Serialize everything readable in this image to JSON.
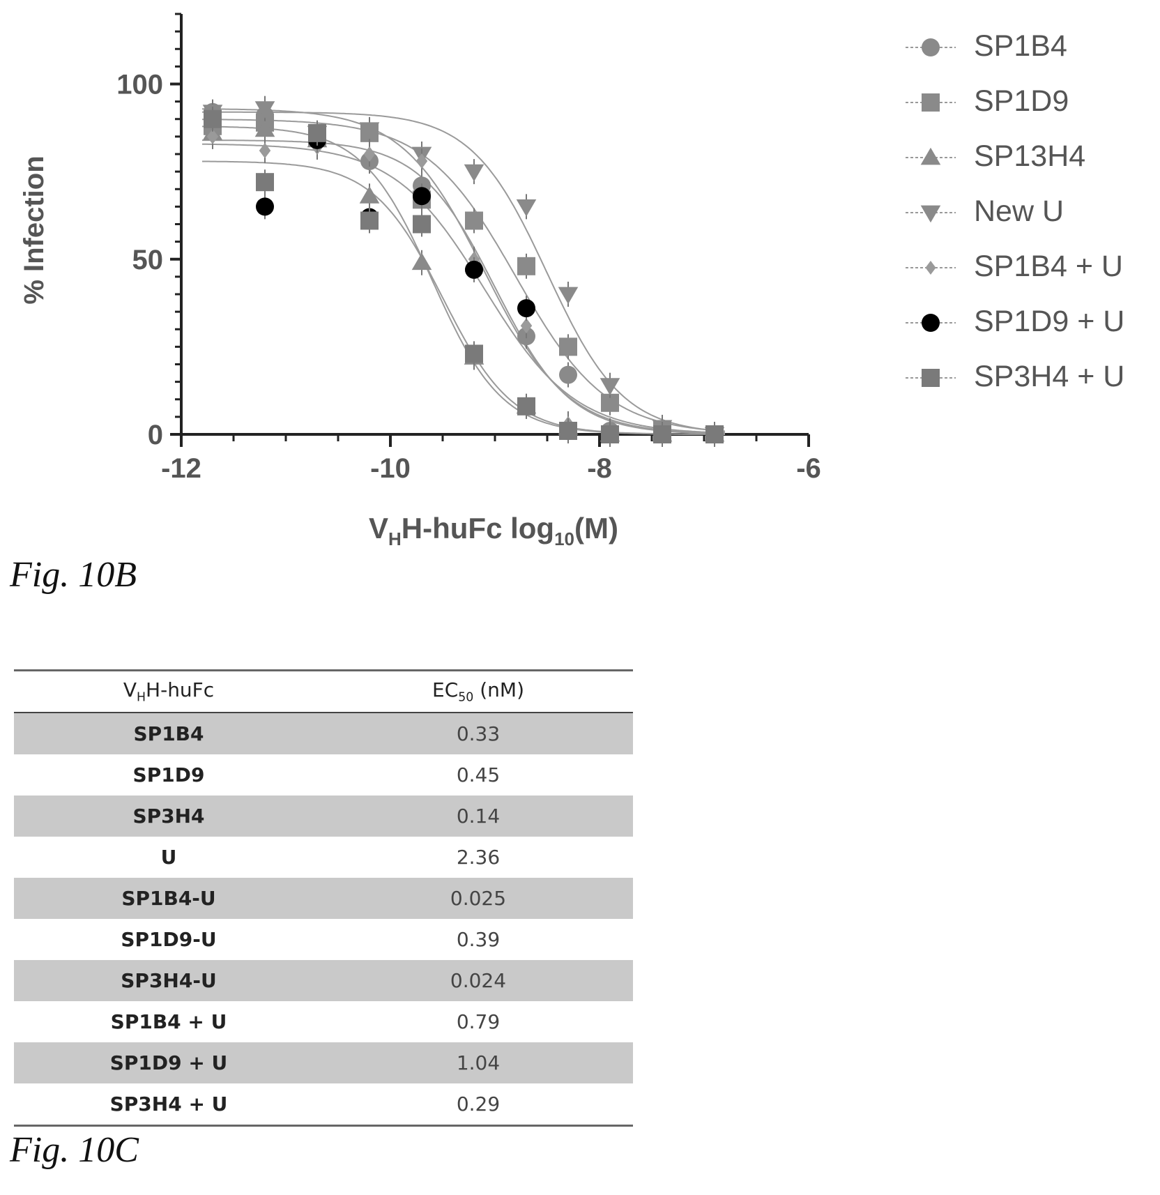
{
  "chart_data": {
    "type": "scatter",
    "title": "",
    "xlabel": {
      "main": "V",
      "sub1": "H",
      "mid": "H-huFc log",
      "sub2": "10",
      "tail": "(M)"
    },
    "ylabel": "% Infection",
    "xlim": [
      -12,
      -6
    ],
    "ylim": [
      0,
      120
    ],
    "x_ticks": [
      -12,
      -10,
      -8,
      -6
    ],
    "y_ticks": [
      0,
      50,
      100
    ],
    "grid": false,
    "legend_position": "right",
    "series": [
      {
        "name": "SP1B4",
        "marker": "circle",
        "color": "#8a8a8a",
        "x": [
          -11.7,
          -11.2,
          -10.7,
          -10.2,
          -9.7,
          -9.2,
          -8.7,
          -8.3,
          -7.9,
          -7.4,
          -6.9
        ],
        "y": [
          92,
          91,
          86,
          78,
          71,
          47,
          28,
          17,
          1,
          1,
          0
        ],
        "fit": {
          "top": 93,
          "bottom": 0,
          "ec50_log": -9.1,
          "hill": 1.1
        }
      },
      {
        "name": "SP1D9",
        "marker": "square",
        "color": "#8a8a8a",
        "x": [
          -11.7,
          -11.2,
          -10.7,
          -10.2,
          -9.7,
          -9.2,
          -8.7,
          -8.3,
          -7.9,
          -7.4,
          -6.9
        ],
        "y": [
          88,
          89,
          85,
          86,
          67,
          61,
          48,
          25,
          9,
          1,
          0
        ],
        "fit": {
          "top": 90,
          "bottom": 0,
          "ec50_log": -8.8,
          "hill": 1.0
        }
      },
      {
        "name": "SP13H4",
        "marker": "triangle-up",
        "color": "#8a8a8a",
        "x": [
          -11.7,
          -11.2,
          -10.7,
          -10.2,
          -9.7,
          -9.2,
          -8.7,
          -8.3,
          -7.9,
          -7.4,
          -6.9
        ],
        "y": [
          86,
          87,
          84,
          68,
          49,
          22,
          8,
          2,
          0,
          0,
          0
        ],
        "fit": {
          "top": 88,
          "bottom": 0,
          "ec50_log": -9.6,
          "hill": 1.3
        }
      },
      {
        "name": "New U",
        "marker": "triangle-down",
        "color": "#8a8a8a",
        "x": [
          -11.7,
          -11.2,
          -10.7,
          -10.2,
          -9.7,
          -9.2,
          -8.7,
          -8.3,
          -7.9,
          -7.4,
          -6.9
        ],
        "y": [
          92,
          93,
          86,
          87,
          80,
          75,
          65,
          40,
          14,
          2,
          0
        ],
        "fit": {
          "top": 92,
          "bottom": 0,
          "ec50_log": -8.5,
          "hill": 1.2
        }
      },
      {
        "name": "SP1B4 + U",
        "marker": "diamond",
        "color": "#9a9a9a",
        "x": [
          -11.7,
          -11.2,
          -10.7,
          -10.2,
          -9.7,
          -9.2,
          -8.7,
          -8.3,
          -7.9,
          -7.4,
          -6.9
        ],
        "y": [
          85,
          81,
          82,
          80,
          78,
          50,
          31,
          3,
          0,
          0,
          0
        ],
        "fit": {
          "top": 84,
          "bottom": 0,
          "ec50_log": -9.0,
          "hill": 1.2
        }
      },
      {
        "name": "SP1D9 + U",
        "marker": "circle",
        "color": "#000000",
        "x": [
          -11.2,
          -10.7,
          -10.2,
          -9.7,
          -9.2,
          -8.7,
          -8.3,
          -7.9
        ],
        "y": [
          65,
          84,
          62,
          68,
          47,
          36,
          1,
          0
        ],
        "fit": {
          "top": 83,
          "bottom": 0,
          "ec50_log": -9.1,
          "hill": 1.0
        }
      },
      {
        "name": "SP3H4 + U",
        "marker": "square",
        "color": "#7a7a7a",
        "x": [
          -11.7,
          -11.2,
          -10.7,
          -10.2,
          -9.7,
          -9.2,
          -8.7,
          -8.3,
          -7.9,
          -7.4,
          -6.9
        ],
        "y": [
          90,
          72,
          86,
          61,
          60,
          23,
          8,
          1,
          0,
          0,
          0
        ],
        "fit": {
          "top": 78,
          "bottom": 0,
          "ec50_log": -9.5,
          "hill": 1.3
        }
      }
    ]
  },
  "figures": {
    "b_label": "Fig. 10B",
    "c_label": "Fig. 10C"
  },
  "table": {
    "header": {
      "col1": {
        "main": "V",
        "sub": "H",
        "tail": "H-huFc"
      },
      "col2": {
        "main": "EC",
        "sub": "50",
        "tail": " (nM)"
      }
    },
    "rows": [
      {
        "name": "SP1B4",
        "value": "0.33"
      },
      {
        "name": "SP1D9",
        "value": "0.45"
      },
      {
        "name": "SP3H4",
        "value": "0.14"
      },
      {
        "name": "U",
        "value": "2.36"
      },
      {
        "name": "SP1B4-U",
        "value": "0.025"
      },
      {
        "name": "SP1D9-U",
        "value": "0.39"
      },
      {
        "name": "SP3H4-U",
        "value": "0.024"
      },
      {
        "name": "SP1B4 + U",
        "value": "0.79"
      },
      {
        "name": "SP1D9 + U",
        "value": "1.04"
      },
      {
        "name": "SP3H4 + U",
        "value": "0.29"
      }
    ]
  }
}
